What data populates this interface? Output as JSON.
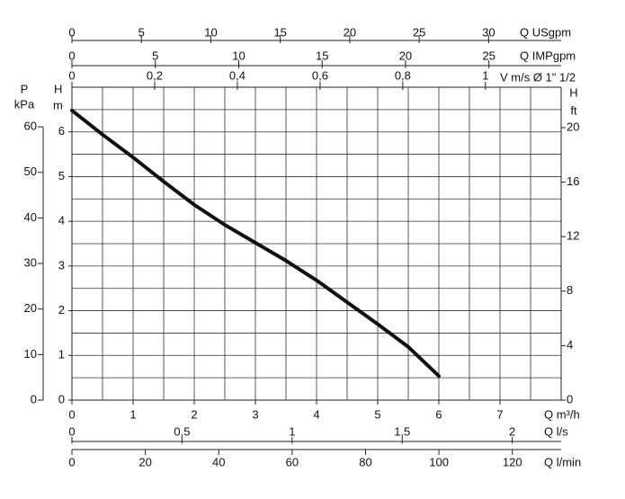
{
  "chart_data": {
    "type": "line",
    "x": [
      0,
      0.5,
      1,
      1.5,
      2,
      2.5,
      3,
      3.5,
      4,
      4.5,
      5,
      5.5,
      6
    ],
    "series": [
      {
        "color": "#111111",
        "values": [
          6.48,
          5.94,
          5.43,
          4.89,
          4.37,
          3.92,
          3.52,
          3.12,
          2.68,
          2.19,
          1.7,
          1.19,
          0.54
        ]
      }
    ],
    "x_label": "Q m³/h",
    "xlim": [
      0,
      8
    ],
    "xticks": [
      0,
      1,
      2,
      3,
      4,
      5,
      6,
      7
    ],
    "y_label": "H",
    "y_unit": "m",
    "ylim": [
      0,
      7
    ],
    "yticks": [
      0,
      1,
      2,
      3,
      4,
      5,
      6
    ],
    "xgrid": [
      0,
      0.5,
      1,
      1.5,
      2,
      2.5,
      3,
      3.5,
      4,
      4.5,
      5,
      5.5,
      6,
      6.5,
      7,
      7.5,
      8
    ],
    "ygrid": [
      0,
      0.5,
      1,
      1.5,
      2,
      2.5,
      3,
      3.5,
      4,
      4.5,
      5,
      5.5,
      6,
      6.5,
      7
    ],
    "kpa_axis": {
      "label": "P",
      "unit": "kPa",
      "lim": [
        0,
        68.7
      ],
      "ticks": [
        0,
        10,
        20,
        30,
        40,
        50,
        60
      ]
    },
    "ft_axis": {
      "label": "H",
      "unit": "ft",
      "lim": [
        0,
        22.97
      ],
      "ticks": [
        0,
        4,
        8,
        12,
        16,
        20
      ]
    },
    "ls_axis": {
      "label": "Q l/s",
      "lim": [
        0,
        2.222
      ],
      "ticks": [
        0,
        {
          "value": 0.5,
          "label": "0,5"
        },
        1,
        {
          "value": 1.5,
          "label": "1,5"
        },
        2
      ]
    },
    "lmin_axis": {
      "label": "Q l/min",
      "lim": [
        0,
        133.3
      ],
      "ticks": [
        0,
        20,
        40,
        60,
        80,
        100,
        120
      ]
    },
    "usgpm_axis": {
      "label": "Q USgpm",
      "lim": [
        0,
        35.22
      ],
      "ticks": [
        0,
        5,
        10,
        15,
        20,
        25,
        30
      ]
    },
    "impgpm_axis": {
      "label": "Q IMPgpm",
      "lim": [
        0,
        29.33
      ],
      "ticks": [
        0,
        5,
        10,
        15,
        20,
        25
      ]
    },
    "velocity_axis": {
      "label": "V m/s Ø 1\" 1/2",
      "lim": [
        0,
        1.183
      ],
      "ticks": [
        0,
        {
          "value": 0.2,
          "label": "0,2"
        },
        {
          "value": 0.4,
          "label": "0,4"
        },
        {
          "value": 0.6,
          "label": "0,6"
        },
        {
          "value": 0.8,
          "label": "0,8"
        },
        1
      ]
    }
  }
}
